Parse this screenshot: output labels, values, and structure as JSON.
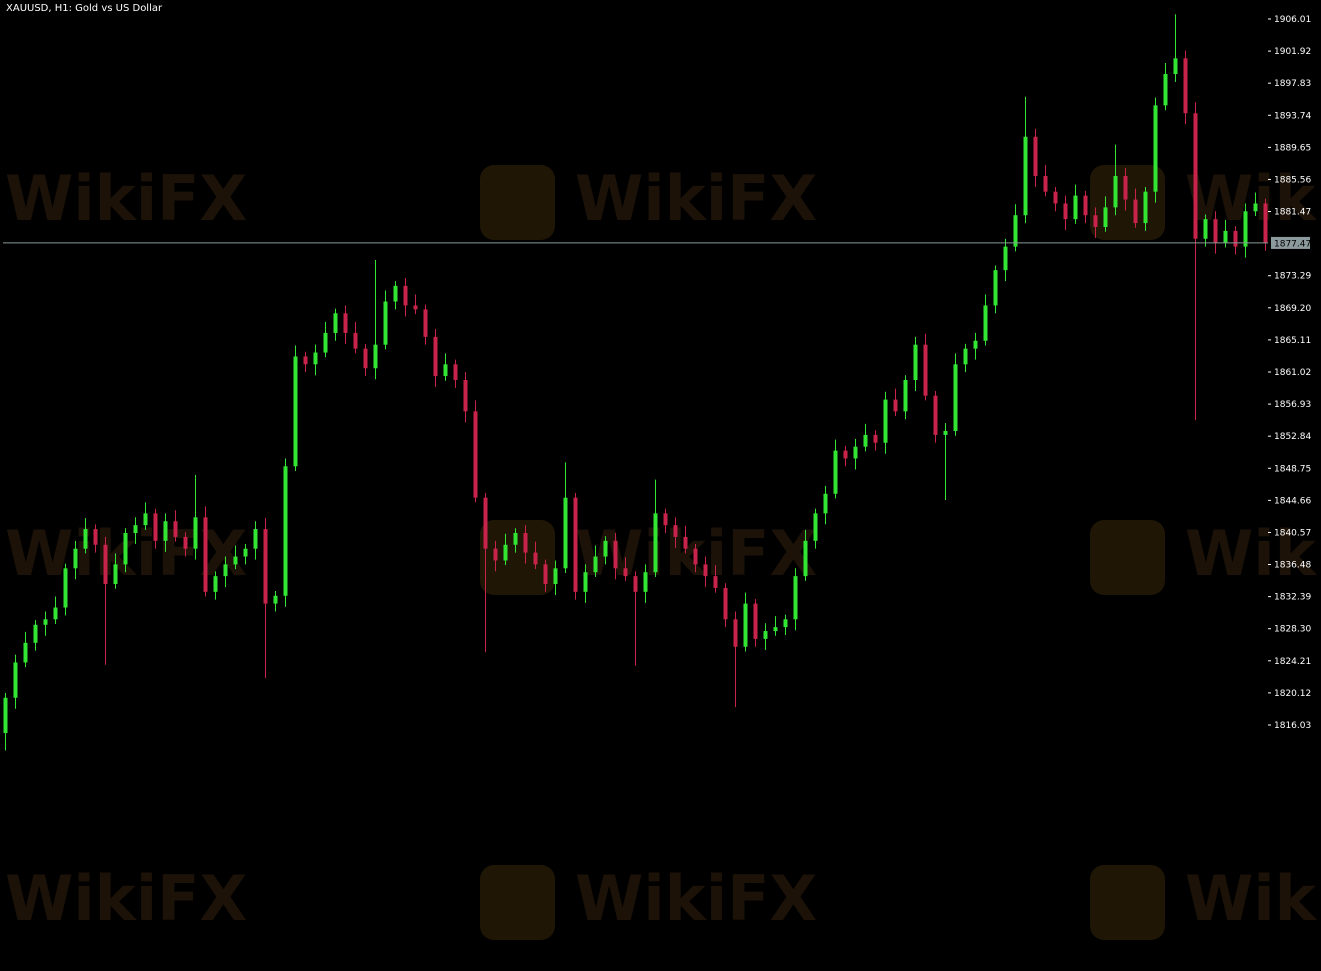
{
  "chart_data": {
    "type": "candlestick",
    "title": "XAUUSD, H1:  Gold vs US Dollar",
    "symbol": "XAUUSD",
    "timeframe": "H1",
    "description": "Gold vs US Dollar",
    "ylim": [
      1812,
      1908
    ],
    "y_ticks": [
      "1906.01",
      "1901.92",
      "1897.83",
      "1893.74",
      "1889.65",
      "1885.56",
      "1881.47",
      "1873.29",
      "1869.20",
      "1865.11",
      "1861.02",
      "1856.93",
      "1852.84",
      "1848.75",
      "1844.66",
      "1840.57",
      "1836.48",
      "1832.39",
      "1828.30",
      "1824.21",
      "1820.12",
      "1816.03"
    ],
    "current_price": "1877.47",
    "colors": {
      "bull": "#33e533",
      "bear": "#c8234b",
      "price_line": "#8a9a9a",
      "price_label_bg": "#8c9a9e",
      "background": "#000000"
    },
    "first_open": 1815.0,
    "closes": [
      1819.5,
      1824.0,
      1826.5,
      1828.8,
      1829.5,
      1831.0,
      1836.0,
      1838.5,
      1841.0,
      1839.0,
      1834.0,
      1836.5,
      1840.5,
      1841.5,
      1843.0,
      1839.5,
      1842.0,
      1840.0,
      1838.5,
      1842.5,
      1833.0,
      1835.0,
      1836.5,
      1837.5,
      1838.5,
      1841.0,
      1831.5,
      1832.5,
      1849.0,
      1863.0,
      1862.0,
      1863.5,
      1866.0,
      1868.5,
      1866.0,
      1864.0,
      1861.5,
      1864.5,
      1870.0,
      1872.0,
      1869.5,
      1869.0,
      1865.5,
      1860.5,
      1862.0,
      1860.0,
      1856.0,
      1845.0,
      1838.5,
      1837.0,
      1839.0,
      1840.5,
      1838.0,
      1836.5,
      1834.0,
      1836.0,
      1845.0,
      1833.0,
      1835.5,
      1837.5,
      1839.5,
      1836.0,
      1835.0,
      1833.0,
      1835.5,
      1843.0,
      1841.5,
      1840.0,
      1838.5,
      1836.5,
      1835.0,
      1833.5,
      1829.5,
      1826.0,
      1831.5,
      1827.0,
      1828.0,
      1828.5,
      1829.5,
      1835.0,
      1839.5,
      1843.0,
      1845.5,
      1851.0,
      1850.0,
      1851.5,
      1853.0,
      1852.0,
      1857.5,
      1856.0,
      1860.0,
      1864.5,
      1858.0,
      1853.0,
      1853.5,
      1862.0,
      1864.0,
      1865.0,
      1869.5,
      1874.0,
      1877.0,
      1881.0,
      1891.0,
      1886.0,
      1884.0,
      1882.5,
      1880.5,
      1883.5,
      1881.0,
      1879.5,
      1882.0,
      1886.0,
      1883.0,
      1880.0,
      1884.0,
      1895.0,
      1899.0,
      1901.0,
      1894.0,
      1878.0,
      1880.5,
      1877.5,
      1879.0,
      1877.0,
      1881.5,
      1882.5,
      1877.47
    ],
    "wick_extremes": [
      {
        "index": 0,
        "low": 1812.8
      },
      {
        "index": 10,
        "low": 1823.7
      },
      {
        "index": 19,
        "high": 1847.9
      },
      {
        "index": 26,
        "low": 1822.0
      },
      {
        "index": 37,
        "high": 1875.3
      },
      {
        "index": 48,
        "low": 1825.3
      },
      {
        "index": 56,
        "high": 1849.5
      },
      {
        "index": 63,
        "low": 1823.6
      },
      {
        "index": 65,
        "high": 1847.3
      },
      {
        "index": 73,
        "low": 1818.3
      },
      {
        "index": 94,
        "low": 1844.7
      },
      {
        "index": 102,
        "high": 1896.1
      },
      {
        "index": 111,
        "high": 1890.0
      },
      {
        "index": 117,
        "high": 1906.6
      },
      {
        "index": 119,
        "low": 1854.9
      }
    ]
  },
  "watermark": "WikiFX"
}
